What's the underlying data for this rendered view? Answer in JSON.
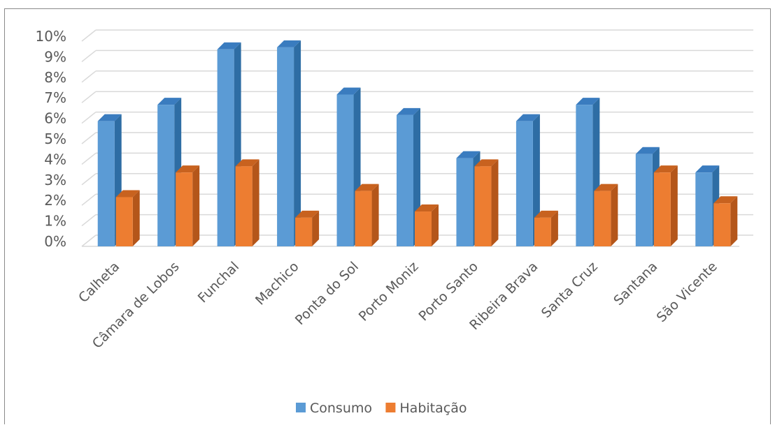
{
  "header": {
    "title": ""
  },
  "chart_data": {
    "type": "bar",
    "title": "",
    "xlabel": "",
    "ylabel": "",
    "ylim": [
      0,
      10
    ],
    "y_tick_labels": [
      "0%",
      "1%",
      "2%",
      "3%",
      "4%",
      "5%",
      "6%",
      "7%",
      "8%",
      "9%",
      "10%"
    ],
    "categories": [
      "Calheta",
      "Câmara de Lobos",
      "Funchal",
      "Machico",
      "Ponta do Sol",
      "Porto Moniz",
      "Porto Santo",
      "Ribeira Brava",
      "Santa Cruz",
      "Santana",
      "São Vicente"
    ],
    "series": [
      {
        "name": "Consumo",
        "color": "#5b9bd5",
        "side_color": "#2e6da4",
        "top_color": "#3a7cbf",
        "values": [
          6.1,
          6.9,
          9.6,
          9.7,
          7.4,
          6.4,
          4.3,
          6.1,
          6.9,
          4.5,
          3.6
        ]
      },
      {
        "name": "Habitação",
        "color": "#ed7d31",
        "side_color": "#b4561a",
        "top_color": "#c8621f",
        "values": [
          2.4,
          3.6,
          3.9,
          1.4,
          2.7,
          1.7,
          3.9,
          1.4,
          2.7,
          3.6,
          2.1
        ]
      }
    ],
    "grid": true,
    "legend": "bottom",
    "style": "3d-clustered-column"
  }
}
